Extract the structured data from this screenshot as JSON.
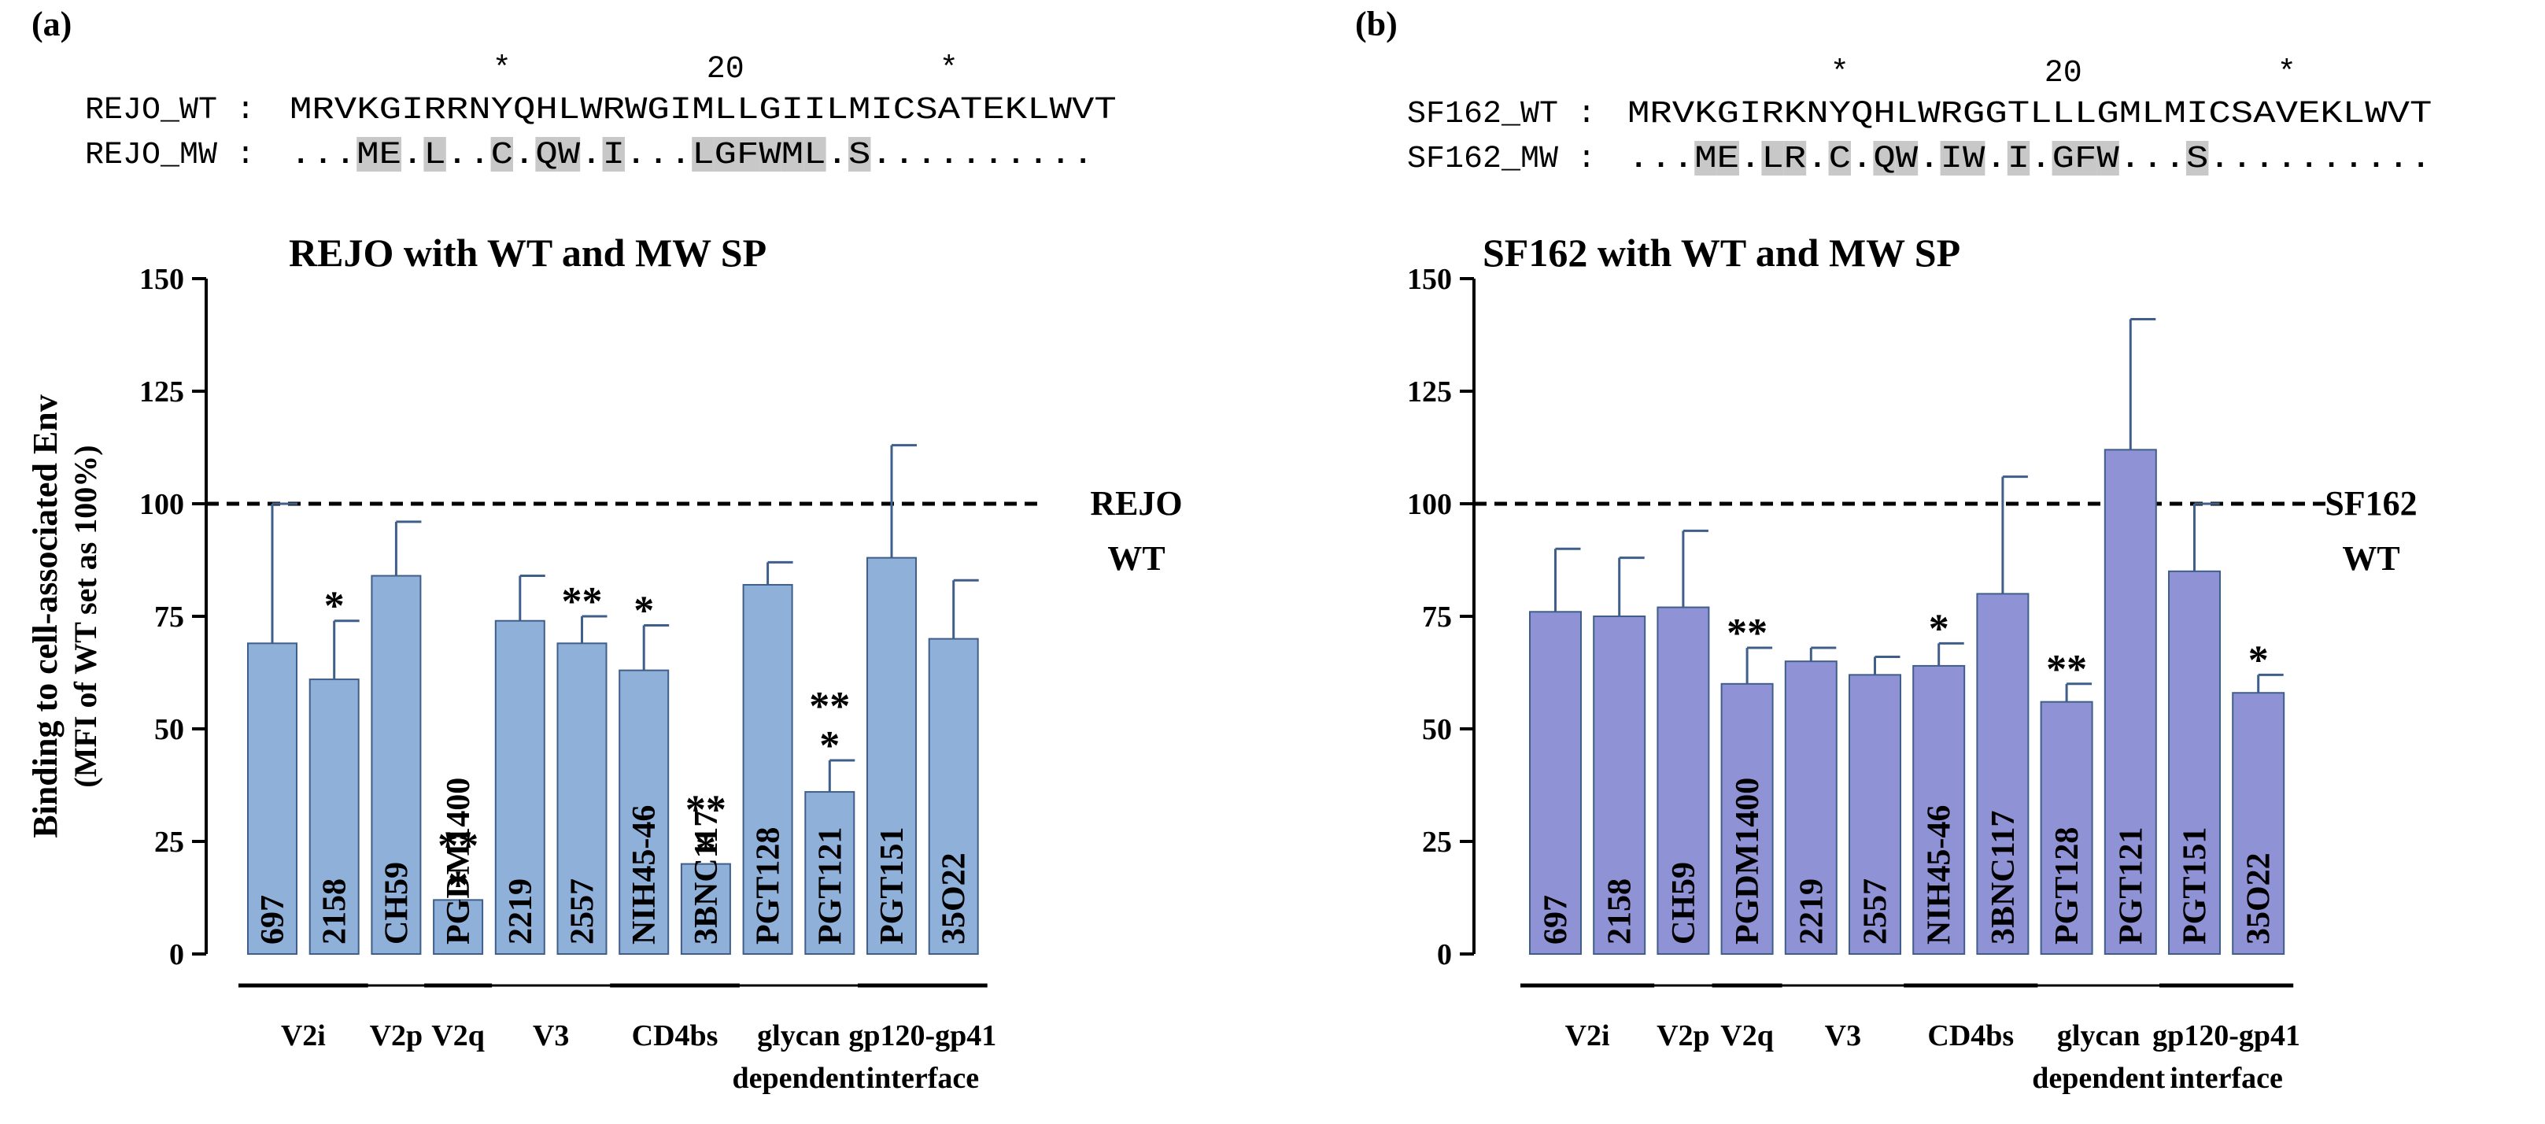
{
  "chart_data": [
    {
      "type": "bar",
      "panel_label": "(a)",
      "title": "REJO with WT and MW SP",
      "ylabel_line1": "Binding to cell-associated Env",
      "ylabel_line2": "(MFI of WT set as 100%)",
      "ylim": [
        0,
        150
      ],
      "yticks": [
        0,
        25,
        50,
        75,
        100,
        125,
        150
      ],
      "bar_color": "#8fb0d9",
      "reference_line": {
        "value": 100,
        "label_line1": "REJO",
        "label_line2": "WT"
      },
      "categories": [
        "697",
        "2158",
        "CH59",
        "PGDM1400",
        "2219",
        "2557",
        "NIH45-46",
        "3BNC117",
        "PGT128",
        "PGT121",
        "PGT151",
        "35O22"
      ],
      "values": [
        69,
        61,
        84,
        12,
        74,
        69,
        63,
        20,
        82,
        36,
        88,
        70
      ],
      "errors": [
        31,
        13,
        12,
        0,
        10,
        6,
        10,
        0,
        5,
        7,
        25,
        13
      ],
      "significance": [
        "",
        "*",
        "",
        "**\n*",
        "",
        "**",
        "*",
        "**\n*",
        "",
        "**\n*",
        "",
        ""
      ],
      "groups": [
        {
          "label": "V2i",
          "bars": [
            0,
            1
          ]
        },
        {
          "label": "V2p",
          "bars": [
            2,
            2
          ]
        },
        {
          "label": "V2q",
          "bars": [
            3,
            3
          ]
        },
        {
          "label": "V3",
          "bars": [
            4,
            5
          ]
        },
        {
          "label": "CD4bs",
          "bars": [
            6,
            7
          ]
        },
        {
          "label": "glycan\ndependent",
          "bars": [
            8,
            9
          ]
        },
        {
          "label": "gp120-gp41\ninterface",
          "bars": [
            10,
            11
          ]
        }
      ],
      "alignment": {
        "marker_line": "*         20         *",
        "wt_name": "REJO_WT",
        "wt_seq": "MRVKGIRRNYQHLWRWGIMLLGIILMICSATEKLWVT",
        "mw_name": "REJO_MW",
        "mw_seq": "...ME.L..C.QW.I...LGFWML.S..........",
        "highlight_positions": [
          3,
          4,
          6,
          9,
          11,
          12,
          14,
          18,
          19,
          20,
          21,
          22,
          23,
          25
        ]
      }
    },
    {
      "type": "bar",
      "panel_label": "(b)",
      "title": "SF162 with WT and MW SP",
      "ylim": [
        0,
        150
      ],
      "yticks": [
        0,
        25,
        50,
        75,
        100,
        125,
        150
      ],
      "bar_color": "#8f92d4",
      "reference_line": {
        "value": 100,
        "label_line1": "SF162",
        "label_line2": "WT"
      },
      "categories": [
        "697",
        "2158",
        "CH59",
        "PGDM1400",
        "2219",
        "2557",
        "NIH45-46",
        "3BNC117",
        "PGT128",
        "PGT121",
        "PGT151",
        "35O22"
      ],
      "values": [
        76,
        75,
        77,
        60,
        65,
        62,
        64,
        80,
        56,
        112,
        85,
        58
      ],
      "errors": [
        14,
        13,
        17,
        8,
        3,
        4,
        5,
        26,
        4,
        29,
        15,
        4
      ],
      "significance": [
        "",
        "",
        "",
        "**",
        "",
        "",
        "*",
        "",
        "**",
        "",
        "",
        "*"
      ],
      "groups": [
        {
          "label": "V2i",
          "bars": [
            0,
            1
          ]
        },
        {
          "label": "V2p",
          "bars": [
            2,
            2
          ]
        },
        {
          "label": "V2q",
          "bars": [
            3,
            3
          ]
        },
        {
          "label": "V3",
          "bars": [
            4,
            5
          ]
        },
        {
          "label": "CD4bs",
          "bars": [
            6,
            7
          ]
        },
        {
          "label": "glycan\ndependent",
          "bars": [
            8,
            9
          ]
        },
        {
          "label": "gp120-gp41\ninterface",
          "bars": [
            10,
            11
          ]
        }
      ],
      "alignment": {
        "marker_line": "*         20         *",
        "wt_name": "SF162_WT",
        "wt_seq": "MRVKGIRKNYQHLWRGGTLLLGMLMICSAVEKLWVT",
        "mw_name": "SF162_MW",
        "mw_seq": "...ME.LR.C.QW.IW.I.GFW...S..........",
        "highlight_positions": [
          3,
          4,
          6,
          7,
          9,
          11,
          12,
          14,
          15,
          17,
          19,
          20,
          21,
          25
        ]
      }
    }
  ]
}
